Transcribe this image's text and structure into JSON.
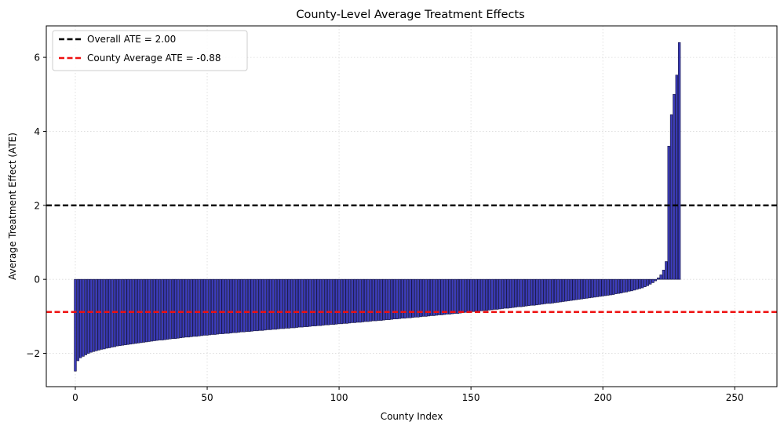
{
  "chart_data": {
    "type": "bar",
    "title": "County-Level Average Treatment Effects",
    "xlabel": "County Index",
    "ylabel": "Average Treatment Effect (ATE)",
    "xlim": [
      -11,
      266
    ],
    "ylim": [
      -2.9,
      6.85
    ],
    "xticks": [
      0,
      50,
      100,
      150,
      200,
      250
    ],
    "yticks": [
      -2,
      0,
      2,
      4,
      6
    ],
    "grid": true,
    "legend_position": "top-left",
    "bar_color": "#3333bb",
    "bar_edge_color": "#1a1a4d",
    "reference_lines": [
      {
        "name": "Overall ATE = 2.00",
        "value": 2.0,
        "color": "#000000",
        "style": "dashed"
      },
      {
        "name": "County Average ATE = -0.88",
        "value": -0.88,
        "color": "#ee1111",
        "style": "dashed"
      }
    ],
    "x_start": 0,
    "values": [
      -2.48,
      -2.2,
      -2.12,
      -2.08,
      -2.04,
      -2.0,
      -1.97,
      -1.95,
      -1.93,
      -1.91,
      -1.89,
      -1.88,
      -1.86,
      -1.85,
      -1.83,
      -1.82,
      -1.8,
      -1.79,
      -1.78,
      -1.77,
      -1.76,
      -1.75,
      -1.74,
      -1.73,
      -1.72,
      -1.71,
      -1.7,
      -1.69,
      -1.68,
      -1.67,
      -1.66,
      -1.65,
      -1.64,
      -1.64,
      -1.63,
      -1.62,
      -1.61,
      -1.6,
      -1.6,
      -1.59,
      -1.58,
      -1.57,
      -1.56,
      -1.56,
      -1.55,
      -1.54,
      -1.54,
      -1.53,
      -1.52,
      -1.51,
      -1.51,
      -1.5,
      -1.49,
      -1.49,
      -1.48,
      -1.47,
      -1.47,
      -1.46,
      -1.46,
      -1.45,
      -1.44,
      -1.44,
      -1.43,
      -1.42,
      -1.42,
      -1.41,
      -1.41,
      -1.4,
      -1.39,
      -1.39,
      -1.38,
      -1.38,
      -1.37,
      -1.36,
      -1.36,
      -1.35,
      -1.35,
      -1.34,
      -1.33,
      -1.33,
      -1.32,
      -1.32,
      -1.31,
      -1.31,
      -1.3,
      -1.29,
      -1.29,
      -1.28,
      -1.28,
      -1.27,
      -1.26,
      -1.26,
      -1.25,
      -1.25,
      -1.24,
      -1.23,
      -1.23,
      -1.22,
      -1.22,
      -1.21,
      -1.2,
      -1.2,
      -1.19,
      -1.19,
      -1.18,
      -1.17,
      -1.17,
      -1.16,
      -1.16,
      -1.15,
      -1.14,
      -1.14,
      -1.13,
      -1.12,
      -1.12,
      -1.11,
      -1.11,
      -1.1,
      -1.09,
      -1.09,
      -1.08,
      -1.07,
      -1.07,
      -1.06,
      -1.05,
      -1.05,
      -1.04,
      -1.04,
      -1.03,
      -1.02,
      -1.02,
      -1.01,
      -1.0,
      -1.0,
      -0.99,
      -0.98,
      -0.98,
      -0.97,
      -0.96,
      -0.96,
      -0.95,
      -0.94,
      -0.94,
      -0.93,
      -0.92,
      -0.92,
      -0.91,
      -0.9,
      -0.89,
      -0.89,
      -0.88,
      -0.87,
      -0.86,
      -0.86,
      -0.85,
      -0.84,
      -0.84,
      -0.83,
      -0.82,
      -0.81,
      -0.81,
      -0.8,
      -0.79,
      -0.78,
      -0.78,
      -0.77,
      -0.76,
      -0.75,
      -0.74,
      -0.74,
      -0.73,
      -0.72,
      -0.71,
      -0.7,
      -0.7,
      -0.69,
      -0.68,
      -0.67,
      -0.66,
      -0.65,
      -0.65,
      -0.64,
      -0.63,
      -0.62,
      -0.61,
      -0.6,
      -0.59,
      -0.58,
      -0.57,
      -0.56,
      -0.55,
      -0.54,
      -0.53,
      -0.52,
      -0.51,
      -0.5,
      -0.49,
      -0.48,
      -0.47,
      -0.46,
      -0.45,
      -0.44,
      -0.43,
      -0.42,
      -0.41,
      -0.39,
      -0.38,
      -0.37,
      -0.35,
      -0.34,
      -0.32,
      -0.31,
      -0.29,
      -0.27,
      -0.25,
      -0.23,
      -0.2,
      -0.17,
      -0.13,
      -0.09,
      -0.04,
      0.04,
      0.12,
      0.25,
      0.48,
      3.6,
      4.45,
      5.0,
      5.52,
      6.4
    ]
  }
}
